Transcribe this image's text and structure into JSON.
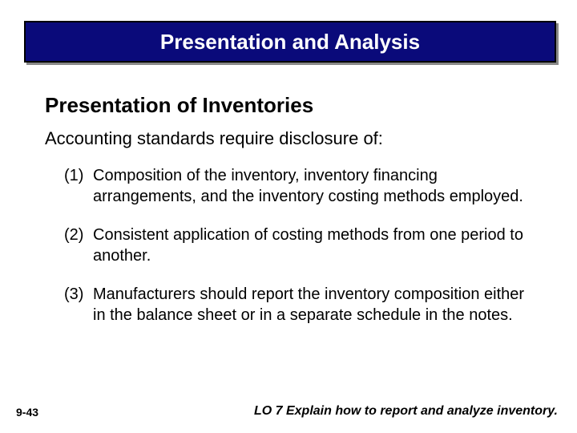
{
  "colors": {
    "title_bg": "#0a0a7a",
    "title_border": "#000000",
    "title_shadow": "#888888",
    "title_text": "#ffffff",
    "body_text": "#000000",
    "background": "#ffffff"
  },
  "typography": {
    "title_fontsize": 26,
    "subtitle_fontsize": 26,
    "lead_fontsize": 22,
    "point_fontsize": 20,
    "footer_fontsize": 14,
    "lo_fontsize": 16
  },
  "title": "Presentation and Analysis",
  "subtitle": "Presentation of Inventories",
  "lead": "Accounting standards require disclosure of:",
  "points": [
    {
      "num": "(1)",
      "text": "Composition of the inventory, inventory financing arrangements, and the inventory costing methods employed."
    },
    {
      "num": "(2)",
      "text": "Consistent application of costing methods from one period to another."
    },
    {
      "num": "(3)",
      "text": "Manufacturers should report the inventory composition either in the balance sheet or in a separate schedule in the notes."
    }
  ],
  "slide_number": "9-43",
  "learning_objective": "LO 7  Explain how to report and analyze inventory."
}
